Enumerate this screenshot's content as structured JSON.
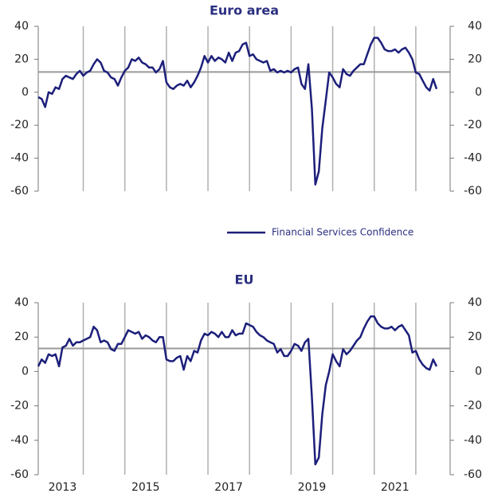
{
  "chart_data": [
    {
      "type": "line",
      "title": "Euro area",
      "legend": "bottom-right",
      "series": [
        {
          "name": "Financial Services Confidence",
          "color": "#1c1f7a",
          "values": [
            -3,
            -4,
            -9,
            0,
            -1,
            3,
            2,
            8,
            10,
            9,
            8,
            11,
            13,
            10,
            12,
            13,
            17,
            20,
            18,
            13,
            12,
            9,
            8,
            4,
            9,
            13,
            15,
            20,
            19,
            21,
            18,
            17,
            15,
            15,
            12,
            14,
            19,
            6,
            3,
            2,
            4,
            5,
            4,
            7,
            3,
            6,
            10,
            15,
            22,
            18,
            22,
            19,
            21,
            20,
            18,
            24,
            19,
            24,
            25,
            29,
            30,
            22,
            23,
            20,
            19,
            18,
            19,
            13,
            14,
            12,
            13,
            12,
            13,
            12,
            14,
            15,
            5,
            2,
            17,
            -10,
            -56,
            -48,
            -22,
            -5,
            12,
            9,
            5,
            3,
            14,
            11,
            10,
            13,
            15,
            17,
            17,
            23,
            29,
            33,
            33,
            30,
            26,
            25,
            25,
            26,
            24,
            26,
            27,
            24,
            20,
            12,
            11,
            7,
            3,
            1,
            8,
            2
          ]
        }
      ],
      "hline": 12.3,
      "ylim": [
        -60,
        40
      ],
      "yticks": [
        -60,
        -40,
        -20,
        0,
        20,
        40
      ],
      "y2lim": [
        -60,
        40
      ],
      "y2ticks": [
        -60,
        -40,
        -20,
        0,
        20,
        40
      ]
    },
    {
      "type": "line",
      "title": "EU",
      "categories": [
        null,
        null,
        null,
        null,
        null,
        null,
        null,
        "2013",
        null,
        null,
        null,
        null,
        null,
        null,
        null,
        null,
        null,
        null,
        null,
        null,
        null,
        null,
        null,
        null,
        null,
        null,
        null,
        null,
        null,
        null,
        null,
        "2015",
        null,
        null,
        null,
        null,
        null,
        null,
        null,
        null,
        null,
        null,
        null,
        null,
        null,
        null,
        null,
        null,
        null,
        null,
        null,
        null,
        null,
        null,
        null,
        "2017",
        null,
        null,
        null,
        null,
        null,
        null,
        null,
        null,
        null,
        null,
        null,
        null,
        null,
        null,
        null,
        null,
        null,
        null,
        null,
        null,
        null,
        null,
        null,
        "2019",
        null,
        null,
        null,
        null,
        null,
        null,
        null,
        null,
        null,
        null,
        null,
        null,
        null,
        null,
        null,
        null,
        null,
        null,
        null,
        null,
        null,
        null,
        null,
        "2021",
        null,
        null,
        null,
        null,
        null,
        null,
        null,
        null,
        null,
        null,
        null,
        null
      ],
      "series": [
        {
          "color": "#1c1f7a",
          "values": [
            3,
            7,
            5,
            10,
            9,
            10,
            3,
            14,
            15,
            19,
            15,
            17,
            17,
            18,
            19,
            20,
            26,
            24,
            17,
            18,
            17,
            13,
            12,
            16,
            16,
            20,
            24,
            23,
            22,
            23,
            19,
            21,
            20,
            18,
            17,
            20,
            20,
            7,
            6,
            6,
            8,
            9,
            1,
            9,
            6,
            12,
            11,
            18,
            22,
            21,
            23,
            22,
            20,
            23,
            20,
            20,
            24,
            21,
            22,
            22,
            28,
            27,
            26,
            23,
            21,
            20,
            18,
            17,
            16,
            11,
            13,
            9,
            9,
            12,
            16,
            15,
            12,
            17,
            19,
            -15,
            -54,
            -50,
            -25,
            -8,
            0,
            10,
            6,
            3,
            13,
            10,
            12,
            15,
            18,
            20,
            25,
            29,
            32,
            32,
            28,
            26,
            25,
            25,
            26,
            24,
            26,
            27,
            24,
            21,
            11,
            12,
            7,
            4,
            2,
            1,
            7,
            3
          ]
        }
      ],
      "hline": 13.4,
      "ylim": [
        -60,
        40
      ],
      "yticks": [
        -60,
        -40,
        -20,
        0,
        20,
        40
      ],
      "y2lim": [
        -60,
        40
      ],
      "y2ticks": [
        -60,
        -40,
        -20,
        0,
        20,
        40
      ]
    }
  ]
}
